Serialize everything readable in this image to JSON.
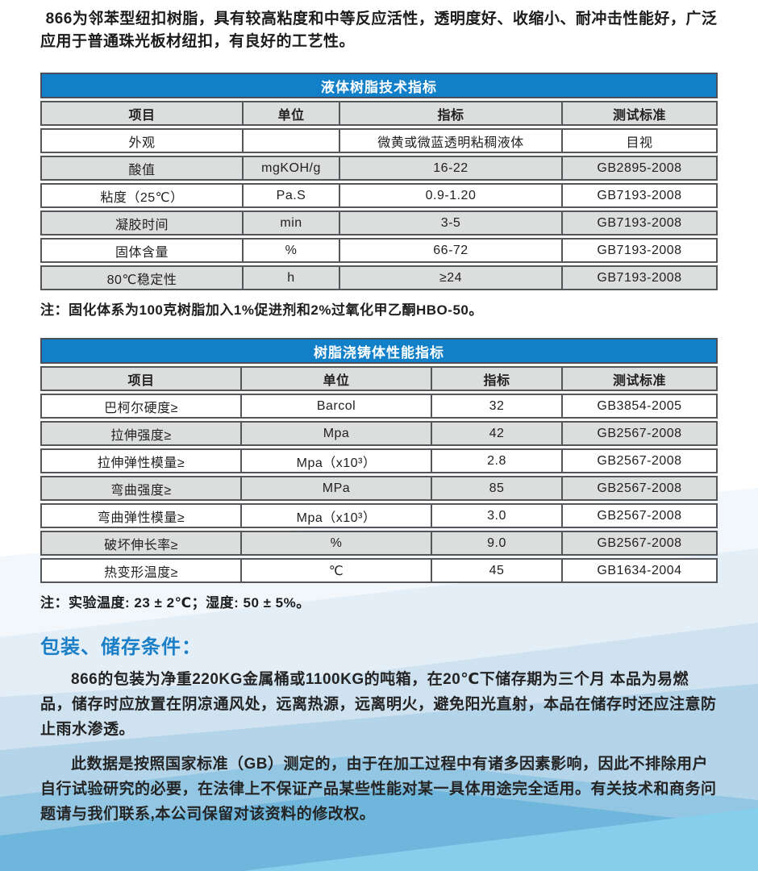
{
  "colors": {
    "accent": "#1180c8",
    "heading-blue": "#1a7fc6",
    "table-border": "#55565a",
    "row-gray": "#dcdddd"
  },
  "intro": "866为邻苯型纽扣树脂，具有较高粘度和中等反应活性，透明度好、收缩小、耐冲击性能好，广泛应用于普通珠光板材纽扣，有良好的工艺性。",
  "table1": {
    "title": "液体树脂技术指标",
    "columns": [
      "项目",
      "单位",
      "指标",
      "测试标准"
    ],
    "rows": [
      [
        "外观",
        "",
        "微黄或微蓝透明粘稠液体",
        "目视"
      ],
      [
        "酸值",
        "mgKOH/g",
        "16-22",
        "GB2895-2008"
      ],
      [
        "粘度（25℃）",
        "Pa.S",
        "0.9-1.20",
        "GB7193-2008"
      ],
      [
        "凝胶时间",
        "min",
        "3-5",
        "GB7193-2008"
      ],
      [
        "固体含量",
        "%",
        "66-72",
        "GB7193-2008"
      ],
      [
        "80℃稳定性",
        "h",
        "≥24",
        "GB7193-2008"
      ]
    ],
    "note": "注：固化体系为100克树脂加入1%促进剂和2%过氧化甲乙酮HBO-50。"
  },
  "table2": {
    "title": "树脂浇铸体性能指标",
    "columns": [
      "项目",
      "单位",
      "指标",
      "测试标准"
    ],
    "rows": [
      [
        "巴柯尔硬度≥",
        "Barcol",
        "32",
        "GB3854-2005"
      ],
      [
        "拉伸强度≥",
        "Mpa",
        "42",
        "GB2567-2008"
      ],
      [
        "拉伸弹性模量≥",
        "Mpa（x10³）",
        "2.8",
        "GB2567-2008"
      ],
      [
        "弯曲强度≥",
        "MPa",
        "85",
        "GB2567-2008"
      ],
      [
        "弯曲弹性模量≥",
        "Mpa（x10³）",
        "3.0",
        "GB2567-2008"
      ],
      [
        "破坏伸长率≥",
        "%",
        "9.0",
        "GB2567-2008"
      ],
      [
        "热变形温度≥",
        "℃",
        "45",
        "GB1634-2004"
      ]
    ],
    "note": "注：实验温度: 23 ± 2℃；湿度: 50 ± 5%。"
  },
  "storage": {
    "heading": "包装、储存条件：",
    "para1": "866的包装为净重220KG金属桶或1100KG的吨箱，在20℃下储存期为三个月 本品为易燃品，储存时应放置在阴凉通风处，远离热源，远离明火，避免阳光直射，本品在储存时还应注意防止雨水渗透。",
    "para2": "此数据是按照国家标准（GB）测定的，由于在加工过程中有诸多因素影响，因此不排除用户自行试验研究的必要，在法律上不保证产品某些性能对某一具体用途完全适用。有关技术和商务问题请与我们联系,本公司保留对该资料的修改权。"
  }
}
